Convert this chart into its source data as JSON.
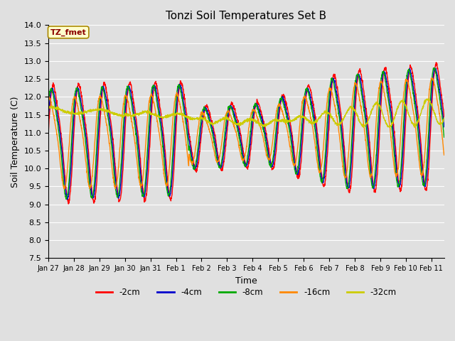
{
  "title": "Tonzi Soil Temperatures Set B",
  "xlabel": "Time",
  "ylabel": "Soil Temperature (C)",
  "ylim": [
    7.5,
    14.0
  ],
  "annotation_text": "TZ_fmet",
  "annotation_color": "#8B0000",
  "annotation_bg": "#FFFFCC",
  "bg_color": "#E0E0E0",
  "plot_bg": "#E0E0E0",
  "grid_color": "#FFFFFF",
  "series_colors": {
    "-2cm": "#FF0000",
    "-4cm": "#0000CC",
    "-8cm": "#00AA00",
    "-16cm": "#FF8800",
    "-32cm": "#CCCC00"
  },
  "legend_labels": [
    "-2cm",
    "-4cm",
    "-8cm",
    "-16cm",
    "-32cm"
  ],
  "x_tick_labels": [
    "Jan 27",
    "Jan 28",
    "Jan 29",
    "Jan 30",
    "Jan 31",
    "Feb 1",
    "Feb 2",
    "Feb 3",
    "Feb 4",
    "Feb 5",
    "Feb 6",
    "Feb 7",
    "Feb 8",
    "Feb 9",
    "Feb 10",
    "Feb 11"
  ],
  "num_points": 2000,
  "start_day": 0,
  "end_day": 15.5
}
